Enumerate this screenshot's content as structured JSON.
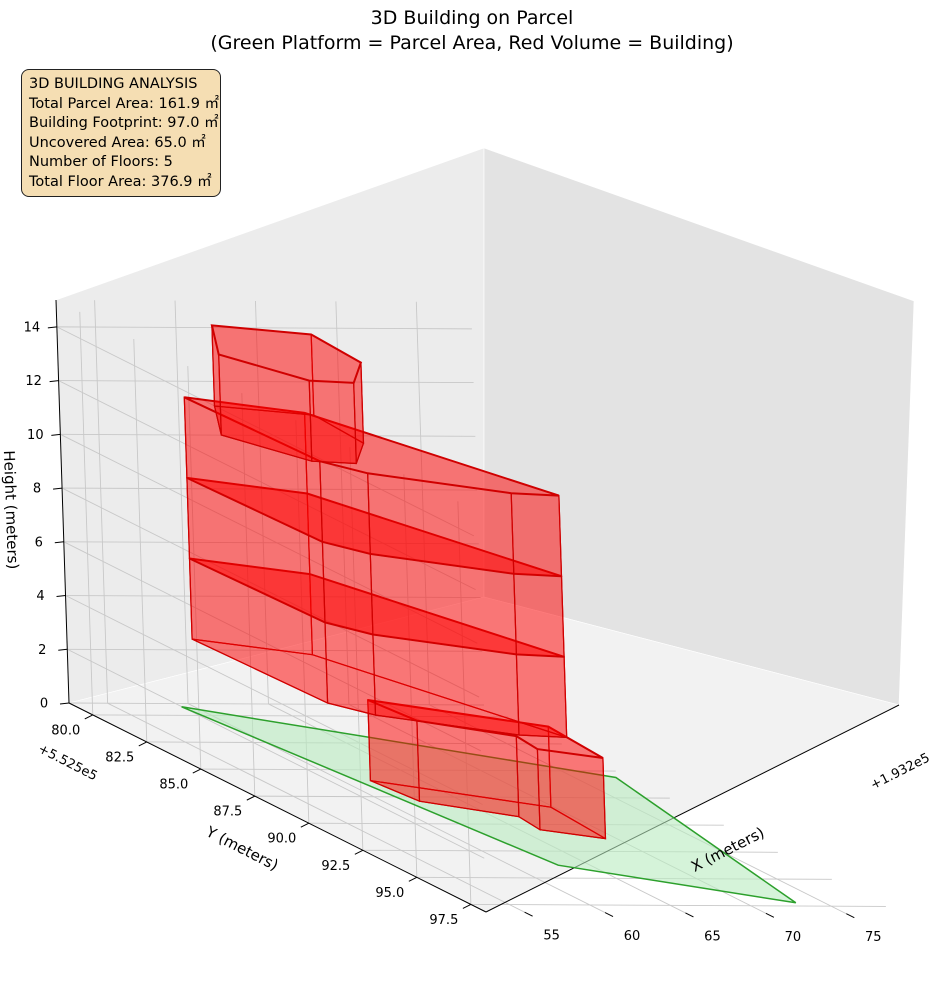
{
  "title": {
    "line1": "3D Building on Parcel",
    "line2": "(Green Platform = Parcel Area, Red Volume = Building)"
  },
  "info_box": {
    "title": "3D BUILDING ANALYSIS",
    "parcel_area": "Total Parcel Area: 161.9 ㎡",
    "footprint": "Building Footprint: 97.0 ㎡",
    "uncovered": "Uncovered Area: 65.0 ㎡",
    "floors": "Number of Floors: 5",
    "floor_area": "Total Floor Area: 376.9 ㎡"
  },
  "colors": {
    "parcel_fill": "#b9ebbf",
    "parcel_edge": "#2ca02c",
    "building_fill": "#ff0000",
    "building_edge": "#d00000",
    "pane_left": "#ececec",
    "pane_right": "#e3e3e3",
    "pane_floor": "#f2f2f2",
    "grid": "#c8c8c8",
    "info_bg": "#f5deb3"
  },
  "chart_data": {
    "type": "3d-polygon",
    "title": "3D Building on Parcel\n(Green Platform = Parcel Area, Red Volume = Building)",
    "xlabel": "X (meters)",
    "ylabel": "Y (meters)",
    "zlabel": "Height (meters)",
    "x_offset": "+1.932e5",
    "y_offset": "+5.525e5",
    "xlim": [
      52.6,
      78.4
    ],
    "ylim": [
      78.9,
      98.2
    ],
    "zlim": [
      0,
      15
    ],
    "x_ticks": [
      "55",
      "60",
      "65",
      "70",
      "75"
    ],
    "y_ticks": [
      "80.0",
      "82.5",
      "85.0",
      "87.5",
      "90.0",
      "92.5",
      "95.0",
      "97.5"
    ],
    "z_ticks": [
      "0",
      "2",
      "4",
      "6",
      "8",
      "10",
      "12",
      "14"
    ],
    "grid": true,
    "parcel_platform": {
      "z": 0,
      "polygon": [
        [
          59.2,
          79.2
        ],
        [
          77.6,
          85.6
        ],
        [
          73.2,
          97.2
        ],
        [
          63.0,
          93.8
        ]
      ]
    },
    "building_floors": [
      {
        "floor": 1,
        "z0": 0,
        "z1": 3,
        "polygon": [
          [
            61.8,
            86.0
          ],
          [
            69.8,
            88.4
          ],
          [
            69.3,
            91.3
          ],
          [
            66.3,
            90.5
          ],
          [
            66.6,
            89.3
          ],
          [
            62.3,
            87.9
          ]
        ]
      },
      {
        "floor": 2,
        "z0": 3,
        "z1": 6,
        "polygon": [
          [
            58.4,
            80.4
          ],
          [
            64.0,
            81.8
          ],
          [
            69.6,
            89.4
          ],
          [
            66.9,
            89.2
          ],
          [
            60.4,
            87.4
          ],
          [
            58.9,
            86.3
          ]
        ]
      },
      {
        "floor": 3,
        "z0": 6,
        "z1": 9,
        "polygon": [
          [
            58.4,
            80.4
          ],
          [
            64.0,
            81.8
          ],
          [
            69.6,
            89.4
          ],
          [
            66.9,
            89.2
          ],
          [
            60.4,
            87.4
          ],
          [
            58.9,
            86.3
          ]
        ]
      },
      {
        "floor": 4,
        "z0": 9,
        "z1": 12,
        "polygon": [
          [
            58.4,
            80.4
          ],
          [
            64.0,
            81.8
          ],
          [
            69.6,
            89.4
          ],
          [
            66.9,
            89.2
          ],
          [
            60.4,
            87.4
          ],
          [
            58.9,
            86.3
          ]
        ]
      },
      {
        "floor": 5,
        "z0": 12,
        "z1": 15,
        "polygon": [
          [
            56.0,
            83.9
          ],
          [
            59.2,
            81.2
          ],
          [
            64.3,
            82.0
          ],
          [
            63.9,
            84.6
          ],
          [
            60.9,
            86.5
          ],
          [
            58.4,
            86.3
          ]
        ]
      }
    ],
    "annotations": [
      "3D BUILDING ANALYSIS",
      "Total Parcel Area: 161.9 ㎡",
      "Building Footprint: 97.0 ㎡",
      "Uncovered Area: 65.0 ㎡",
      "Number of Floors: 5",
      "Total Floor Area: 376.9 ㎡"
    ]
  }
}
